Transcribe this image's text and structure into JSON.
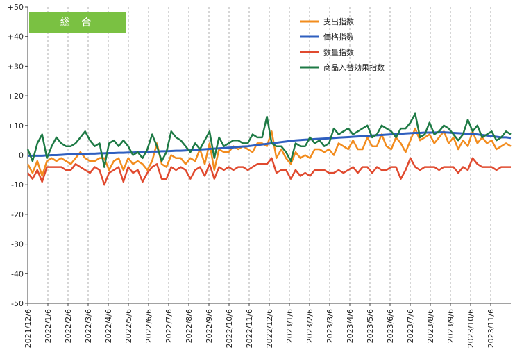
{
  "chart_data": {
    "type": "line",
    "title": "総 合",
    "title_box_color": "#7ac142",
    "ylim": [
      -50,
      50
    ],
    "ytick_labels": [
      "+50",
      "+40",
      "+30",
      "+20",
      "+10",
      "0",
      "-10",
      "-20",
      "-30",
      "-40",
      "-50"
    ],
    "x_labels": [
      "2021/12/6",
      "2022/1/6",
      "2022/2/6",
      "2022/3/6",
      "2022/4/6",
      "2022/5/6",
      "2022/6/6",
      "2022/7/6",
      "2022/8/6",
      "2022/9/6",
      "2022/10/6",
      "2022/11/6",
      "2022/12/6",
      "2023/1/6",
      "2023/2/6",
      "2023/3/6",
      "2023/4/6",
      "2023/5/6",
      "2023/6/6",
      "2023/7/6",
      "2023/8/6",
      "2023/9/6",
      "2023/10/6",
      "2023/11/6"
    ],
    "grid": "vertical dashed",
    "legend_position": "top-right",
    "series": [
      {
        "name": "支出指数",
        "color": "#f28c1e",
        "values": [
          -3,
          -6,
          -2,
          -7,
          -2,
          -1,
          -2,
          -1,
          -2,
          -3,
          -1,
          1,
          -1,
          -2,
          -2,
          -1,
          -1,
          -5,
          -2,
          -1,
          -5,
          -1,
          -3,
          -2,
          -3,
          -5,
          -2,
          4,
          -3,
          -4,
          0,
          -1,
          -1,
          -3,
          -1,
          -2,
          2,
          -3,
          4,
          -5,
          2,
          1,
          1,
          3,
          2,
          3,
          2,
          1,
          4,
          4,
          3,
          8,
          -1,
          2,
          -1,
          -3,
          1,
          -1,
          0,
          -1,
          2,
          2,
          1,
          2,
          0,
          4,
          3,
          2,
          5,
          2,
          2,
          6,
          3,
          3,
          7,
          3,
          2,
          6,
          4,
          1,
          5,
          9,
          5,
          6,
          7,
          4,
          6,
          8,
          4,
          6,
          2,
          5,
          3,
          8,
          4,
          6,
          4,
          5,
          2,
          3,
          4,
          3
        ]
      },
      {
        "name": "価格指数",
        "color": "#2f5fbf",
        "values": [
          -0.2,
          -0.2,
          -0.2,
          -0.2,
          -0.1,
          0,
          0,
          0.1,
          0.2,
          0.3,
          0.3,
          0.4,
          0.4,
          0.5,
          0.5,
          0.6,
          0.6,
          0.7,
          0.7,
          0.8,
          0.8,
          0.9,
          0.9,
          1,
          1,
          1.1,
          1.2,
          1.2,
          1.3,
          1.3,
          1.4,
          1.5,
          1.5,
          1.6,
          1.7,
          1.8,
          1.9,
          2,
          2.1,
          2.2,
          2.3,
          2.4,
          2.5,
          2.6,
          2.8,
          2.9,
          3,
          3.2,
          3.4,
          3.6,
          3.8,
          4,
          4.2,
          4.4,
          4.6,
          4.8,
          5,
          5.1,
          5.2,
          5.3,
          5.4,
          5.5,
          5.6,
          5.7,
          5.8,
          5.9,
          6,
          6.1,
          6.2,
          6.3,
          6.4,
          6.5,
          6.6,
          6.7,
          6.8,
          6.9,
          7,
          7.1,
          7.2,
          7.3,
          7.4,
          7.5,
          7.5,
          7.6,
          7.6,
          7.6,
          7.7,
          7.7,
          7.6,
          7.5,
          7.4,
          7.3,
          7.2,
          7.1,
          7,
          6.8,
          6.6,
          6.4,
          6.2,
          6,
          6,
          5.8
        ]
      },
      {
        "name": "数量指数",
        "color": "#e04a2f",
        "values": [
          -6,
          -8,
          -5,
          -9,
          -4,
          -4,
          -4,
          -4,
          -5,
          -5,
          -3,
          -4,
          -5,
          -6,
          -4,
          -5,
          -10,
          -6,
          -5,
          -4,
          -9,
          -4,
          -6,
          -5,
          -9,
          -6,
          -4,
          -3,
          -8,
          -8,
          -4,
          -5,
          -4,
          -5,
          -8,
          -5,
          -4,
          -7,
          -3,
          -8,
          -4,
          -5,
          -4,
          -5,
          -4,
          -4,
          -5,
          -4,
          -3,
          -3,
          -3,
          -1,
          -6,
          -5,
          -5,
          -8,
          -5,
          -7,
          -6,
          -7,
          -5,
          -5,
          -5,
          -6,
          -6,
          -5,
          -6,
          -5,
          -4,
          -6,
          -4,
          -4,
          -6,
          -4,
          -5,
          -5,
          -4,
          -4,
          -8,
          -5,
          -1,
          -4,
          -5,
          -4,
          -4,
          -4,
          -5,
          -4,
          -4,
          -4,
          -6,
          -4,
          -5,
          -1,
          -3,
          -4,
          -4,
          -4,
          -5,
          -4,
          -4,
          -4
        ]
      },
      {
        "name": "商品入替効果指数",
        "color": "#1e7a45",
        "values": [
          2,
          -2,
          4,
          7,
          -1,
          3,
          6,
          4,
          3,
          3,
          4,
          6,
          8,
          5,
          3,
          4,
          -4,
          4,
          5,
          3,
          5,
          3,
          0,
          1,
          -1,
          2,
          7,
          3,
          -2,
          1,
          8,
          6,
          5,
          3,
          1,
          4,
          2,
          5,
          8,
          -1,
          6,
          3,
          4,
          5,
          5,
          4,
          4,
          7,
          6,
          6,
          13,
          4,
          3,
          3,
          1,
          -2,
          4,
          3,
          3,
          6,
          4,
          5,
          3,
          4,
          9,
          7,
          8,
          9,
          7,
          8,
          9,
          10,
          6,
          7,
          10,
          9,
          8,
          6,
          9,
          9,
          11,
          14,
          6,
          7,
          11,
          7,
          8,
          10,
          9,
          7,
          5,
          7,
          12,
          8,
          10,
          6,
          7,
          8,
          5,
          6,
          8,
          7
        ]
      }
    ]
  }
}
